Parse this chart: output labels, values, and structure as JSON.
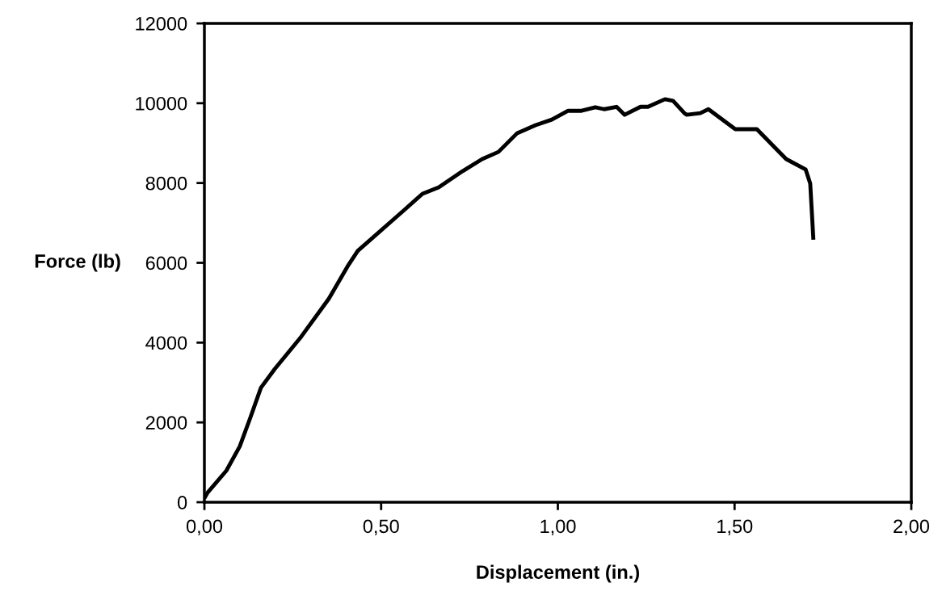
{
  "chart_data": {
    "type": "line",
    "xlabel": "Displacement (in.)",
    "ylabel": "Force (lb)",
    "xlim": [
      0,
      2
    ],
    "ylim": [
      0,
      12000
    ],
    "xticks": [
      {
        "value": 0,
        "label": "0,00"
      },
      {
        "value": 0.5,
        "label": "0,50"
      },
      {
        "value": 1,
        "label": "1,00"
      },
      {
        "value": 1.5,
        "label": "1,50"
      },
      {
        "value": 2,
        "label": "2,00"
      }
    ],
    "yticks": [
      0,
      2000,
      4000,
      6000,
      8000,
      10000,
      12000
    ],
    "grid": false,
    "marker": "none",
    "line_style": "solid",
    "series": [
      {
        "color": "#000000",
        "x": [
          0,
          0.009,
          0.062,
          0.1,
          0.13,
          0.16,
          0.199,
          0.274,
          0.352,
          0.405,
          0.434,
          0.565,
          0.617,
          0.663,
          0.731,
          0.786,
          0.832,
          0.885,
          0.937,
          0.983,
          1.029,
          1.067,
          1.106,
          1.131,
          1.166,
          1.189,
          1.234,
          1.255,
          1.303,
          1.326,
          1.358,
          1.365,
          1.403,
          1.426,
          1.502,
          1.563,
          1.646,
          1.701,
          1.714,
          1.723
        ],
        "values": [
          100,
          240,
          790,
          1400,
          2120,
          2870,
          3340,
          4150,
          5100,
          5910,
          6300,
          7320,
          7730,
          7890,
          8300,
          8600,
          8780,
          9250,
          9450,
          9590,
          9810,
          9810,
          9900,
          9850,
          9910,
          9710,
          9910,
          9910,
          10100,
          10060,
          9750,
          9710,
          9750,
          9850,
          9350,
          9350,
          8600,
          8340,
          7990,
          6580
        ]
      }
    ]
  }
}
